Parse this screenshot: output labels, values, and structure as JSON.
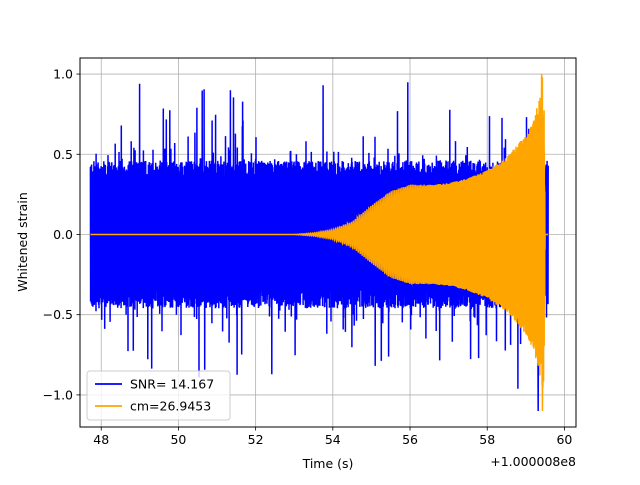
{
  "chart_data": {
    "type": "line",
    "title": "",
    "xlabel": "Time (s)",
    "ylabel": "Whitened strain",
    "x_offset_label": "+1.000008e8",
    "xlim": [
      47.45,
      60.3
    ],
    "ylim": [
      -1.2,
      1.1
    ],
    "x_ticks": [
      48,
      50,
      52,
      54,
      56,
      58,
      60
    ],
    "x_tick_labels": [
      "48",
      "50",
      "52",
      "54",
      "56",
      "58",
      "60"
    ],
    "y_ticks": [
      1.0,
      0.5,
      0.0,
      -0.5,
      -1.0
    ],
    "y_tick_labels": [
      "1.0",
      "0.5",
      "0.0",
      "−0.5",
      "−1.0"
    ],
    "grid": true,
    "legend_position": "lower-left",
    "series": [
      {
        "name": "SNR= 14.167",
        "color": "#0000ff",
        "kind": "noise",
        "x_range": [
          47.72,
          59.58
        ],
        "gap": [
          59.45,
          59.52
        ],
        "typical_amplitude": 0.46,
        "peak_amplitude": 1.0,
        "min_value": -1.1
      },
      {
        "name": "cm=26.9453",
        "color": "#ffa500",
        "kind": "chirp",
        "x": [
          47.72,
          52.0,
          53.0,
          53.5,
          54.0,
          54.5,
          55.0,
          55.5,
          56.0,
          56.5,
          57.0,
          57.5,
          58.0,
          58.5,
          59.0,
          59.2,
          59.35,
          59.42,
          59.47,
          59.5,
          59.58
        ],
        "envelope": [
          0.0,
          0.0,
          0.0,
          0.01,
          0.03,
          0.08,
          0.18,
          0.27,
          0.31,
          0.31,
          0.32,
          0.35,
          0.4,
          0.48,
          0.62,
          0.72,
          0.85,
          1.0,
          0.9,
          0.0,
          0.0
        ],
        "min_value": -1.1,
        "max_value": 1.0
      }
    ]
  }
}
